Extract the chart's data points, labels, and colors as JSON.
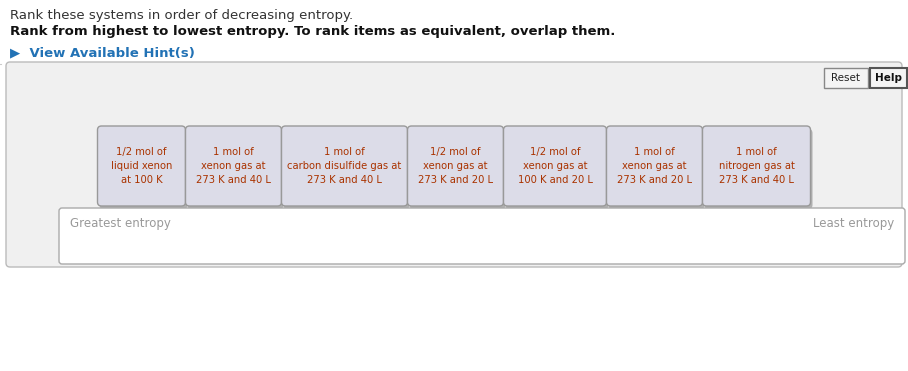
{
  "title_line1": "Rank these systems in order of decreasing entropy.",
  "title_line2": "Rank from highest to lowest entropy. To rank items as equivalent, overlap them.",
  "hint_text": "▶  View Available Hint(s)",
  "hint_color": "#2272b5",
  "background_color": "#ffffff",
  "panel_bg": "#f0f0f0",
  "panel_border": "#bbbbbb",
  "card_bg": "#dcdce8",
  "card_border": "#999999",
  "card_shadow": "#aaaaaa",
  "card_text_color": "#aa3300",
  "card_font_size": 7.2,
  "cards": [
    "1/2 mol of\nliquid xenon\nat 100 K",
    "1 mol of\nxenon gas at\n273 K and 40 L",
    "1 mol of\ncarbon disulfide gas at\n273 K and 40 L",
    "1/2 mol of\nxenon gas at\n273 K and 20 L",
    "1/2 mol of\nxenon gas at\n100 K and 20 L",
    "1 mol of\nxenon gas at\n273 K and 20 L",
    "1 mol of\nnitrogen gas at\n273 K and 40 L"
  ],
  "card_widths": [
    80,
    88,
    118,
    88,
    95,
    88,
    100
  ],
  "reset_label": "Reset",
  "help_label": "Help",
  "greatest_label": "Greatest entropy",
  "least_label": "Least entropy",
  "bottom_panel_bg": "#ffffff",
  "bottom_panel_border": "#aaaaaa",
  "title1_color": "#333333",
  "title2_color": "#111111"
}
